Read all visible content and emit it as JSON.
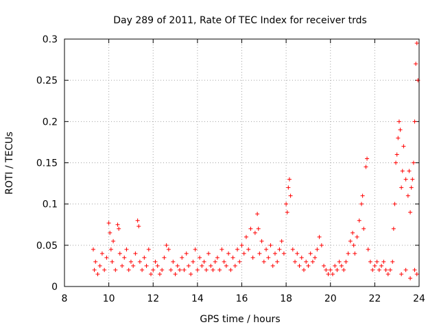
{
  "chart_data": {
    "type": "scatter",
    "title": "Day 289 of 2011, Rate Of TEC Index for receiver trds",
    "xlabel": "GPS time / hours",
    "ylabel": "ROTI / TECUs",
    "xlim": [
      8,
      24
    ],
    "ylim": [
      0,
      0.3
    ],
    "xticks": [
      8,
      10,
      12,
      14,
      16,
      18,
      20,
      22,
      24
    ],
    "yticks": [
      0,
      0.05,
      0.1,
      0.15,
      0.2,
      0.25,
      0.3
    ],
    "xtick_labels": [
      "8",
      "10",
      "12",
      "14",
      "16",
      "18",
      "20",
      "22",
      "24"
    ],
    "ytick_labels": [
      "0",
      "0.05",
      "0.1",
      "0.15",
      "0.2",
      "0.25",
      "0.3"
    ],
    "grid": true,
    "marker": "+",
    "color": "#ff0000",
    "series": [
      {
        "name": "ROTI",
        "points": [
          [
            9.3,
            0.045
          ],
          [
            9.35,
            0.02
          ],
          [
            9.4,
            0.03
          ],
          [
            9.5,
            0.015
          ],
          [
            9.6,
            0.025
          ],
          [
            9.7,
            0.04
          ],
          [
            9.8,
            0.02
          ],
          [
            9.9,
            0.035
          ],
          [
            10.0,
            0.077
          ],
          [
            10.05,
            0.065
          ],
          [
            10.1,
            0.045
          ],
          [
            10.15,
            0.03
          ],
          [
            10.2,
            0.055
          ],
          [
            10.3,
            0.02
          ],
          [
            10.4,
            0.075
          ],
          [
            10.45,
            0.07
          ],
          [
            10.5,
            0.04
          ],
          [
            10.6,
            0.025
          ],
          [
            10.7,
            0.035
          ],
          [
            10.8,
            0.045
          ],
          [
            10.9,
            0.02
          ],
          [
            11.0,
            0.03
          ],
          [
            11.1,
            0.025
          ],
          [
            11.2,
            0.04
          ],
          [
            11.3,
            0.08
          ],
          [
            11.35,
            0.073
          ],
          [
            11.4,
            0.03
          ],
          [
            11.5,
            0.02
          ],
          [
            11.6,
            0.035
          ],
          [
            11.7,
            0.025
          ],
          [
            11.8,
            0.045
          ],
          [
            11.9,
            0.015
          ],
          [
            12.0,
            0.02
          ],
          [
            12.1,
            0.03
          ],
          [
            12.2,
            0.025
          ],
          [
            12.3,
            0.015
          ],
          [
            12.4,
            0.02
          ],
          [
            12.5,
            0.035
          ],
          [
            12.6,
            0.05
          ],
          [
            12.7,
            0.045
          ],
          [
            12.8,
            0.02
          ],
          [
            12.9,
            0.03
          ],
          [
            13.0,
            0.015
          ],
          [
            13.1,
            0.025
          ],
          [
            13.2,
            0.02
          ],
          [
            13.3,
            0.035
          ],
          [
            13.4,
            0.02
          ],
          [
            13.5,
            0.04
          ],
          [
            13.6,
            0.025
          ],
          [
            13.7,
            0.015
          ],
          [
            13.8,
            0.03
          ],
          [
            13.9,
            0.045
          ],
          [
            14.0,
            0.02
          ],
          [
            14.1,
            0.035
          ],
          [
            14.2,
            0.025
          ],
          [
            14.3,
            0.03
          ],
          [
            14.4,
            0.02
          ],
          [
            14.5,
            0.04
          ],
          [
            14.6,
            0.025
          ],
          [
            14.7,
            0.02
          ],
          [
            14.8,
            0.03
          ],
          [
            14.9,
            0.035
          ],
          [
            15.0,
            0.02
          ],
          [
            15.1,
            0.045
          ],
          [
            15.2,
            0.03
          ],
          [
            15.3,
            0.025
          ],
          [
            15.4,
            0.04
          ],
          [
            15.5,
            0.02
          ],
          [
            15.6,
            0.035
          ],
          [
            15.7,
            0.025
          ],
          [
            15.8,
            0.045
          ],
          [
            15.9,
            0.03
          ],
          [
            16.0,
            0.05
          ],
          [
            16.1,
            0.04
          ],
          [
            16.2,
            0.06
          ],
          [
            16.3,
            0.045
          ],
          [
            16.4,
            0.07
          ],
          [
            16.5,
            0.035
          ],
          [
            16.6,
            0.065
          ],
          [
            16.7,
            0.088
          ],
          [
            16.75,
            0.07
          ],
          [
            16.8,
            0.04
          ],
          [
            16.9,
            0.055
          ],
          [
            17.0,
            0.03
          ],
          [
            17.1,
            0.045
          ],
          [
            17.2,
            0.035
          ],
          [
            17.3,
            0.05
          ],
          [
            17.4,
            0.025
          ],
          [
            17.5,
            0.04
          ],
          [
            17.6,
            0.03
          ],
          [
            17.7,
            0.045
          ],
          [
            17.8,
            0.055
          ],
          [
            17.9,
            0.04
          ],
          [
            18.0,
            0.1
          ],
          [
            18.05,
            0.09
          ],
          [
            18.1,
            0.12
          ],
          [
            18.15,
            0.13
          ],
          [
            18.2,
            0.11
          ],
          [
            18.3,
            0.045
          ],
          [
            18.4,
            0.03
          ],
          [
            18.5,
            0.04
          ],
          [
            18.6,
            0.025
          ],
          [
            18.7,
            0.035
          ],
          [
            18.8,
            0.02
          ],
          [
            18.9,
            0.03
          ],
          [
            19.0,
            0.025
          ],
          [
            19.1,
            0.04
          ],
          [
            19.2,
            0.03
          ],
          [
            19.3,
            0.035
          ],
          [
            19.4,
            0.045
          ],
          [
            19.5,
            0.06
          ],
          [
            19.6,
            0.05
          ],
          [
            19.7,
            0.025
          ],
          [
            19.8,
            0.02
          ],
          [
            19.9,
            0.015
          ],
          [
            20.0,
            0.02
          ],
          [
            20.1,
            0.015
          ],
          [
            20.2,
            0.025
          ],
          [
            20.3,
            0.02
          ],
          [
            20.4,
            0.03
          ],
          [
            20.5,
            0.025
          ],
          [
            20.6,
            0.02
          ],
          [
            20.7,
            0.03
          ],
          [
            20.8,
            0.04
          ],
          [
            20.9,
            0.055
          ],
          [
            21.0,
            0.065
          ],
          [
            21.05,
            0.05
          ],
          [
            21.1,
            0.04
          ],
          [
            21.2,
            0.06
          ],
          [
            21.3,
            0.08
          ],
          [
            21.4,
            0.1
          ],
          [
            21.45,
            0.11
          ],
          [
            21.5,
            0.07
          ],
          [
            21.6,
            0.145
          ],
          [
            21.65,
            0.155
          ],
          [
            21.7,
            0.045
          ],
          [
            21.8,
            0.03
          ],
          [
            21.9,
            0.02
          ],
          [
            22.0,
            0.025
          ],
          [
            22.1,
            0.03
          ],
          [
            22.2,
            0.02
          ],
          [
            22.3,
            0.025
          ],
          [
            22.4,
            0.03
          ],
          [
            22.5,
            0.02
          ],
          [
            22.6,
            0.015
          ],
          [
            22.7,
            0.02
          ],
          [
            22.8,
            0.03
          ],
          [
            22.85,
            0.07
          ],
          [
            22.9,
            0.1
          ],
          [
            22.95,
            0.15
          ],
          [
            23.0,
            0.16
          ],
          [
            23.05,
            0.18
          ],
          [
            23.1,
            0.2
          ],
          [
            23.15,
            0.19
          ],
          [
            23.2,
            0.12
          ],
          [
            23.25,
            0.14
          ],
          [
            23.3,
            0.17
          ],
          [
            23.4,
            0.13
          ],
          [
            23.5,
            0.11
          ],
          [
            23.55,
            0.14
          ],
          [
            23.6,
            0.09
          ],
          [
            23.65,
            0.12
          ],
          [
            23.7,
            0.13
          ],
          [
            23.75,
            0.15
          ],
          [
            23.8,
            0.2
          ],
          [
            23.85,
            0.27
          ],
          [
            23.9,
            0.295
          ],
          [
            23.95,
            0.25
          ],
          [
            23.2,
            0.015
          ],
          [
            23.4,
            0.02
          ],
          [
            23.6,
            0.01
          ],
          [
            23.8,
            0.02
          ],
          [
            23.9,
            0.015
          ]
        ]
      }
    ]
  }
}
